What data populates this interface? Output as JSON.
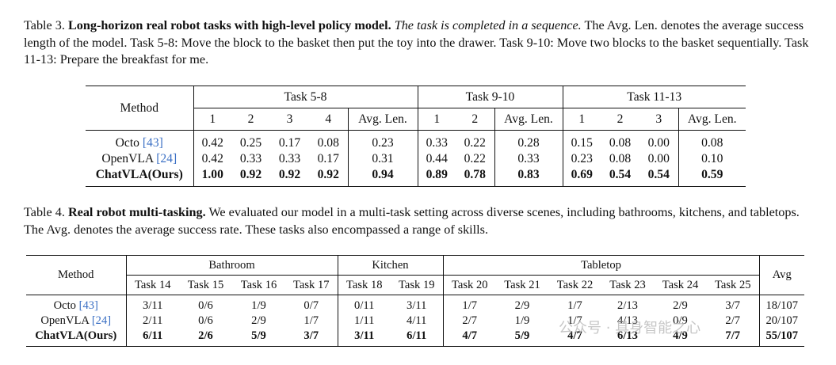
{
  "table3": {
    "caption_label": "Table 3.",
    "caption_bold": "Long-horizon real robot tasks with high-level policy model.",
    "caption_italic": "The task is completed in a sequence.",
    "caption_rest": "The Avg. Len. denotes the average success length of the model. Task 5-8: Move the block to the basket then put the toy into the drawer. Task 9-10: Move two blocks to the basket sequentially. Task 11-13: Prepare the breakfast for me.",
    "method_header": "Method",
    "groups": [
      "Task 5-8",
      "Task 9-10",
      "Task 11-13"
    ],
    "subheaders": [
      "1",
      "2",
      "3",
      "4",
      "Avg. Len.",
      "1",
      "2",
      "Avg. Len.",
      "1",
      "2",
      "3",
      "Avg. Len."
    ],
    "rows": [
      {
        "method": "Octo",
        "cite": "[43]",
        "values": [
          "0.42",
          "0.25",
          "0.17",
          "0.08",
          "0.23",
          "0.33",
          "0.22",
          "0.28",
          "0.15",
          "0.08",
          "0.00",
          "0.08"
        ],
        "bold": false
      },
      {
        "method": "OpenVLA",
        "cite": "[24]",
        "values": [
          "0.42",
          "0.33",
          "0.33",
          "0.17",
          "0.31",
          "0.44",
          "0.22",
          "0.33",
          "0.23",
          "0.08",
          "0.00",
          "0.10"
        ],
        "bold": false
      },
      {
        "method": "ChatVLA(Ours)",
        "cite": "",
        "values": [
          "1.00",
          "0.92",
          "0.92",
          "0.92",
          "0.94",
          "0.89",
          "0.78",
          "0.83",
          "0.69",
          "0.54",
          "0.54",
          "0.59"
        ],
        "bold": true
      }
    ]
  },
  "table4": {
    "caption_label": "Table 4.",
    "caption_bold": "Real robot multi-tasking.",
    "caption_rest": "We evaluated our model in a multi-task setting across diverse scenes, including bathrooms, kitchens, and tabletops. The Avg. denotes the average success rate. These tasks also encompassed a range of skills.",
    "method_header": "Method",
    "avg_header": "Avg",
    "groups": [
      "Bathroom",
      "Kitchen",
      "Tabletop"
    ],
    "subheaders": [
      "Task 14",
      "Task 15",
      "Task 16",
      "Task 17",
      "Task 18",
      "Task 19",
      "Task 20",
      "Task 21",
      "Task 22",
      "Task 23",
      "Task 24",
      "Task 25"
    ],
    "rows": [
      {
        "method": "Octo",
        "cite": "[43]",
        "values": [
          "3/11",
          "0/6",
          "1/9",
          "0/7",
          "0/11",
          "3/11",
          "1/7",
          "2/9",
          "1/7",
          "2/13",
          "2/9",
          "3/7"
        ],
        "avg": "18/107",
        "bold": false
      },
      {
        "method": "OpenVLA",
        "cite": "[24]",
        "values": [
          "2/11",
          "0/6",
          "2/9",
          "1/7",
          "1/11",
          "4/11",
          "2/7",
          "1/9",
          "1/7",
          "4/13",
          "0/9",
          "2/7"
        ],
        "avg": "20/107",
        "bold": false
      },
      {
        "method": "ChatVLA(Ours)",
        "cite": "",
        "values": [
          "6/11",
          "2/6",
          "5/9",
          "3/7",
          "3/11",
          "6/11",
          "4/7",
          "5/9",
          "4/7",
          "6/13",
          "4/9",
          "7/7"
        ],
        "avg": "55/107",
        "bold": true
      }
    ]
  },
  "watermark": "公众号 · 具身智能之心"
}
